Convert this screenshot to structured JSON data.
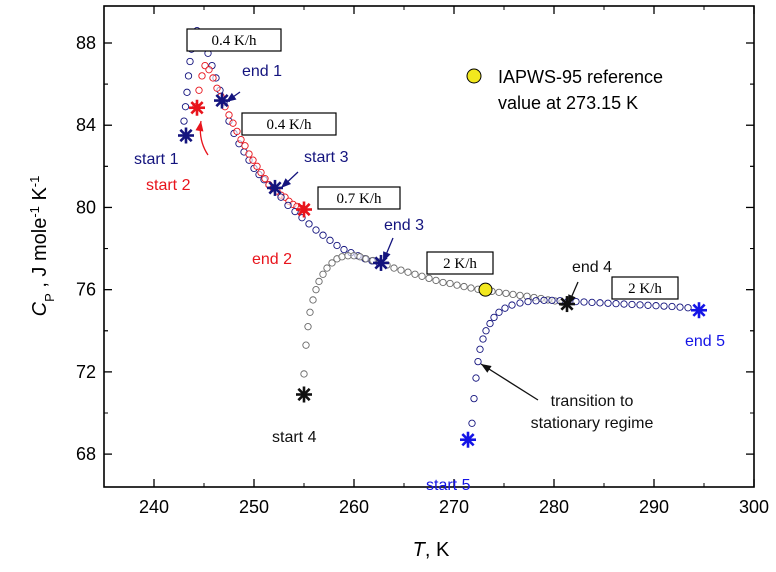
{
  "chart_data": {
    "type": "scatter",
    "xlabel": {
      "italic": "T",
      "rest": ", K"
    },
    "ylabel": {
      "italic": "C",
      "sub": "P",
      "rest": " , J mole",
      "sup1": "-1",
      "rest2": " K",
      "sup2": "-1"
    },
    "xlim": [
      235,
      300
    ],
    "ylim": [
      66.4,
      89.8
    ],
    "x_ticks": [
      "240",
      "250",
      "260",
      "270",
      "280",
      "290",
      "300"
    ],
    "y_ticks": [
      "68",
      "72",
      "76",
      "80",
      "84",
      "88"
    ],
    "colors": {
      "red": "#e8141c",
      "navy": "#14147e",
      "blue": "#1414e6",
      "black": "#111111",
      "grey": "#6a6a6a",
      "legend_fill": "#f2e81e"
    },
    "series": [
      {
        "color": "navy",
        "points": [
          [
            243.0,
            84.2
          ],
          [
            243.15,
            84.9
          ],
          [
            243.3,
            85.6
          ],
          [
            243.45,
            86.4
          ],
          [
            243.6,
            87.1
          ],
          [
            243.75,
            87.7
          ],
          [
            243.9,
            88.1
          ],
          [
            244.1,
            88.4
          ],
          [
            244.3,
            88.6
          ],
          [
            244.6,
            88.45
          ],
          [
            245.0,
            88.1
          ],
          [
            245.4,
            87.5
          ],
          [
            245.8,
            86.9
          ],
          [
            246.2,
            86.3
          ],
          [
            246.6,
            85.7
          ],
          [
            247.0,
            85.1
          ],
          [
            247.5,
            84.2
          ],
          [
            248.0,
            83.6
          ],
          [
            248.5,
            83.1
          ],
          [
            249.0,
            82.7
          ],
          [
            249.5,
            82.3
          ],
          [
            250.0,
            81.9
          ],
          [
            250.5,
            81.6
          ],
          [
            251.0,
            81.35
          ],
          [
            251.5,
            81.1
          ],
          [
            252.0,
            80.95
          ]
        ]
      },
      {
        "color": "red",
        "points": [
          [
            244.2,
            84.9
          ],
          [
            244.5,
            85.7
          ],
          [
            244.8,
            86.4
          ],
          [
            245.1,
            86.9
          ],
          [
            245.5,
            86.7
          ],
          [
            245.9,
            86.3
          ],
          [
            246.3,
            85.8
          ],
          [
            246.7,
            85.4
          ],
          [
            247.1,
            84.9
          ],
          [
            247.5,
            84.5
          ],
          [
            247.9,
            84.1
          ],
          [
            248.3,
            83.7
          ],
          [
            248.7,
            83.3
          ],
          [
            249.1,
            83.0
          ],
          [
            249.5,
            82.6
          ],
          [
            249.9,
            82.3
          ],
          [
            250.3,
            82.0
          ],
          [
            250.7,
            81.7
          ],
          [
            251.1,
            81.4
          ],
          [
            251.5,
            81.1
          ],
          [
            251.9,
            80.95
          ],
          [
            252.3,
            80.8
          ],
          [
            252.7,
            80.6
          ],
          [
            253.1,
            80.5
          ],
          [
            253.5,
            80.3
          ],
          [
            253.9,
            80.15
          ],
          [
            254.3,
            80.05
          ],
          [
            254.7,
            79.95
          ],
          [
            255.0,
            79.9
          ]
        ]
      },
      {
        "color": "navy",
        "points": [
          [
            252.0,
            80.95
          ],
          [
            252.7,
            80.5
          ],
          [
            253.4,
            80.1
          ],
          [
            254.1,
            79.8
          ],
          [
            254.8,
            79.5
          ],
          [
            255.5,
            79.2
          ],
          [
            256.2,
            78.9
          ],
          [
            256.9,
            78.65
          ],
          [
            257.6,
            78.4
          ],
          [
            258.3,
            78.15
          ],
          [
            259.0,
            77.95
          ],
          [
            259.7,
            77.8
          ],
          [
            260.4,
            77.65
          ],
          [
            261.1,
            77.5
          ],
          [
            261.8,
            77.4
          ],
          [
            262.5,
            77.3
          ]
        ]
      },
      {
        "color": "grey",
        "points": [
          [
            255.0,
            71.9
          ],
          [
            255.2,
            73.3
          ],
          [
            255.4,
            74.2
          ],
          [
            255.6,
            74.9
          ],
          [
            255.9,
            75.5
          ],
          [
            256.2,
            76.0
          ],
          [
            256.5,
            76.4
          ],
          [
            256.9,
            76.75
          ],
          [
            257.3,
            77.05
          ],
          [
            257.8,
            77.3
          ],
          [
            258.3,
            77.5
          ],
          [
            258.8,
            77.6
          ],
          [
            259.4,
            77.65
          ],
          [
            260.0,
            77.65
          ],
          [
            260.6,
            77.6
          ],
          [
            261.2,
            77.5
          ],
          [
            261.9,
            77.42
          ],
          [
            262.6,
            77.35
          ],
          [
            263.3,
            77.2
          ],
          [
            264.0,
            77.05
          ],
          [
            264.7,
            76.95
          ],
          [
            265.4,
            76.85
          ],
          [
            266.1,
            76.75
          ],
          [
            266.8,
            76.65
          ],
          [
            267.5,
            76.55
          ],
          [
            268.2,
            76.45
          ],
          [
            268.9,
            76.35
          ],
          [
            269.6,
            76.3
          ],
          [
            270.3,
            76.22
          ],
          [
            271.0,
            76.15
          ],
          [
            271.7,
            76.08
          ],
          [
            272.4,
            76.02
          ],
          [
            273.1,
            75.97
          ],
          [
            273.8,
            75.92
          ],
          [
            274.5,
            75.87
          ],
          [
            275.2,
            75.82
          ],
          [
            275.9,
            75.77
          ],
          [
            276.6,
            75.72
          ],
          [
            277.3,
            75.68
          ],
          [
            278.0,
            75.62
          ],
          [
            278.7,
            75.57
          ],
          [
            279.4,
            75.5
          ],
          [
            280.1,
            75.45
          ],
          [
            280.8,
            75.38
          ]
        ]
      },
      {
        "color": "navy",
        "points": [
          [
            271.8,
            69.5
          ],
          [
            272.0,
            70.7
          ],
          [
            272.2,
            71.7
          ],
          [
            272.4,
            72.5
          ],
          [
            272.6,
            73.1
          ],
          [
            272.9,
            73.6
          ],
          [
            273.2,
            74.0
          ],
          [
            273.6,
            74.35
          ],
          [
            274.0,
            74.65
          ],
          [
            274.5,
            74.9
          ],
          [
            275.1,
            75.1
          ],
          [
            275.8,
            75.25
          ],
          [
            276.6,
            75.35
          ],
          [
            277.4,
            75.42
          ],
          [
            278.2,
            75.46
          ],
          [
            279.0,
            75.48
          ],
          [
            279.8,
            75.48
          ],
          [
            280.6,
            75.46
          ],
          [
            281.4,
            75.44
          ],
          [
            282.2,
            75.42
          ],
          [
            283.0,
            75.4
          ],
          [
            283.8,
            75.38
          ],
          [
            284.6,
            75.36
          ],
          [
            285.4,
            75.34
          ],
          [
            286.2,
            75.32
          ],
          [
            287.0,
            75.3
          ],
          [
            287.8,
            75.28
          ],
          [
            288.6,
            75.26
          ],
          [
            289.4,
            75.24
          ],
          [
            290.2,
            75.22
          ],
          [
            291.0,
            75.2
          ],
          [
            291.8,
            75.18
          ],
          [
            292.6,
            75.15
          ],
          [
            293.4,
            75.12
          ]
        ]
      }
    ],
    "markers": [
      {
        "x": 243.2,
        "y": 83.5,
        "color": "navy"
      },
      {
        "x": 244.3,
        "y": 84.85,
        "color": "red"
      },
      {
        "x": 246.8,
        "y": 85.2,
        "color": "navy"
      },
      {
        "x": 252.1,
        "y": 80.95,
        "color": "navy"
      },
      {
        "x": 255.0,
        "y": 79.9,
        "color": "red"
      },
      {
        "x": 262.7,
        "y": 77.3,
        "color": "navy"
      },
      {
        "x": 255.0,
        "y": 70.9,
        "color": "black"
      },
      {
        "x": 281.3,
        "y": 75.3,
        "color": "black"
      },
      {
        "x": 271.4,
        "y": 68.7,
        "color": "blue"
      },
      {
        "x": 294.5,
        "y": 75.0,
        "color": "blue"
      }
    ],
    "reference_point": {
      "x": 273.15,
      "y": 76.0,
      "color": "legend_fill"
    },
    "legend": {
      "lines": [
        "IAPWS-95 reference",
        "value at 273.15 K"
      ]
    },
    "annotations": [
      {
        "text": "end 1",
        "color": "navy"
      },
      {
        "text": "start 1",
        "color": "navy"
      },
      {
        "text": "start 2",
        "color": "red"
      },
      {
        "text": "start 3",
        "color": "navy"
      },
      {
        "text": "end 2",
        "color": "red"
      },
      {
        "text": "end 3",
        "color": "navy"
      },
      {
        "text": "start 4",
        "color": "black"
      },
      {
        "text": "end 4",
        "color": "black"
      },
      {
        "text": "start 5",
        "color": "blue"
      },
      {
        "text": "end 5",
        "color": "blue"
      },
      {
        "text": "transition to",
        "color": "black"
      },
      {
        "text": "stationary regime",
        "color": "black"
      }
    ],
    "rate_labels": [
      "0.4 K/h",
      "0.4 K/h",
      "0.7 K/h",
      "2 K/h",
      "2 K/h"
    ]
  }
}
